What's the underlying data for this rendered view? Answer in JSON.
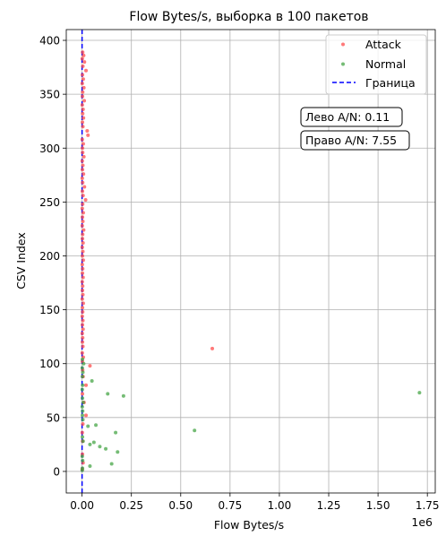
{
  "chart_data": {
    "type": "scatter",
    "title": "Flow Bytes/s, выборка в 100 пакетов",
    "xlabel": "Flow Bytes/s",
    "ylabel": "CSV Index",
    "x_offset_label": "1e6",
    "xlim": [
      -0.08,
      1.79
    ],
    "ylim": [
      -20,
      410
    ],
    "x_ticks": [
      0.0,
      0.25,
      0.5,
      0.75,
      1.0,
      1.25,
      1.5,
      1.75
    ],
    "x_tick_labels": [
      "0.00",
      "0.25",
      "0.50",
      "0.75",
      "1.00",
      "1.25",
      "1.50",
      "1.75"
    ],
    "y_ticks": [
      0,
      50,
      100,
      150,
      200,
      250,
      300,
      350,
      400
    ],
    "y_tick_labels": [
      "0",
      "50",
      "100",
      "150",
      "200",
      "250",
      "300",
      "350",
      "400"
    ],
    "grid": true,
    "legend_position": "top-right",
    "legend": [
      "Attack",
      "Normal",
      "Граница"
    ],
    "boundary_x": 0.0,
    "colors": {
      "attack": "#ff4040",
      "normal": "#3aa03a",
      "boundary": "#0000ff"
    },
    "annotations": [
      "Лево A/N: 0.11",
      "Право A/N: 7.55"
    ],
    "series": [
      {
        "name": "Attack",
        "points": [
          [
            0.003,
            389
          ],
          [
            0.008,
            386
          ],
          [
            0.001,
            383
          ],
          [
            0.012,
            380
          ],
          [
            0.004,
            376
          ],
          [
            0.02,
            372
          ],
          [
            0.002,
            368
          ],
          [
            0.006,
            364
          ],
          [
            0.001,
            360
          ],
          [
            0.009,
            356
          ],
          [
            0.003,
            352
          ],
          [
            0.002,
            348
          ],
          [
            0.011,
            344
          ],
          [
            0.001,
            340
          ],
          [
            0.005,
            336
          ],
          [
            0.003,
            332
          ],
          [
            0.007,
            328
          ],
          [
            0.002,
            324
          ],
          [
            0.004,
            320
          ],
          [
            0.026,
            316
          ],
          [
            0.03,
            312
          ],
          [
            0.001,
            308
          ],
          [
            0.006,
            304
          ],
          [
            0.002,
            300
          ],
          [
            0.003,
            296
          ],
          [
            0.009,
            292
          ],
          [
            0.001,
            288
          ],
          [
            0.004,
            284
          ],
          [
            0.002,
            280
          ],
          [
            0.007,
            276
          ],
          [
            0.001,
            272
          ],
          [
            0.003,
            268
          ],
          [
            0.012,
            264
          ],
          [
            0.002,
            260
          ],
          [
            0.005,
            256
          ],
          [
            0.018,
            252
          ],
          [
            0.003,
            248
          ],
          [
            0.001,
            244
          ],
          [
            0.006,
            240
          ],
          [
            0.002,
            236
          ],
          [
            0.004,
            232
          ],
          [
            0.001,
            228
          ],
          [
            0.008,
            224
          ],
          [
            0.003,
            220
          ],
          [
            0.002,
            216
          ],
          [
            0.005,
            212
          ],
          [
            0.001,
            208
          ],
          [
            0.004,
            204
          ],
          [
            0.002,
            200
          ],
          [
            0.006,
            196
          ],
          [
            0.001,
            192
          ],
          [
            0.003,
            188
          ],
          [
            0.002,
            184
          ],
          [
            0.005,
            180
          ],
          [
            0.001,
            176
          ],
          [
            0.003,
            172
          ],
          [
            0.002,
            168
          ],
          [
            0.004,
            164
          ],
          [
            0.001,
            160
          ],
          [
            0.006,
            156
          ],
          [
            0.002,
            152
          ],
          [
            0.003,
            148
          ],
          [
            0.001,
            144
          ],
          [
            0.004,
            140
          ],
          [
            0.002,
            136
          ],
          [
            0.005,
            132
          ],
          [
            0.001,
            128
          ],
          [
            0.003,
            124
          ],
          [
            0.002,
            120
          ],
          [
            0.004,
            116
          ],
          [
            0.66,
            114
          ],
          [
            0.001,
            110
          ],
          [
            0.006,
            106
          ],
          [
            0.002,
            102
          ],
          [
            0.04,
            98
          ],
          [
            0.003,
            94
          ],
          [
            0.005,
            88
          ],
          [
            0.02,
            80
          ],
          [
            0.002,
            72
          ],
          [
            0.01,
            64
          ],
          [
            0.02,
            52
          ],
          [
            0.004,
            44
          ],
          [
            0.001,
            36
          ],
          [
            0.003,
            28
          ],
          [
            0.002,
            16
          ],
          [
            0.005,
            8
          ],
          [
            0.001,
            2
          ]
        ]
      },
      {
        "name": "Normal",
        "points": [
          [
            0.002,
            104
          ],
          [
            0.008,
            100
          ],
          [
            0.001,
            96
          ],
          [
            0.004,
            92
          ],
          [
            0.002,
            88
          ],
          [
            0.05,
            84
          ],
          [
            0.003,
            80
          ],
          [
            0.001,
            76
          ],
          [
            0.13,
            72
          ],
          [
            1.71,
            73
          ],
          [
            0.21,
            70
          ],
          [
            0.002,
            68
          ],
          [
            0.006,
            64
          ],
          [
            0.001,
            60
          ],
          [
            0.003,
            56
          ],
          [
            0.002,
            52
          ],
          [
            0.004,
            48
          ],
          [
            0.07,
            43
          ],
          [
            0.03,
            42
          ],
          [
            0.57,
            38
          ],
          [
            0.17,
            36
          ],
          [
            0.002,
            32
          ],
          [
            0.005,
            28
          ],
          [
            0.06,
            27
          ],
          [
            0.04,
            25
          ],
          [
            0.09,
            23
          ],
          [
            0.12,
            21
          ],
          [
            0.18,
            18
          ],
          [
            0.001,
            14
          ],
          [
            0.003,
            10
          ],
          [
            0.15,
            7
          ],
          [
            0.04,
            5
          ],
          [
            0.002,
            3
          ],
          [
            0.001,
            1
          ]
        ]
      }
    ]
  }
}
